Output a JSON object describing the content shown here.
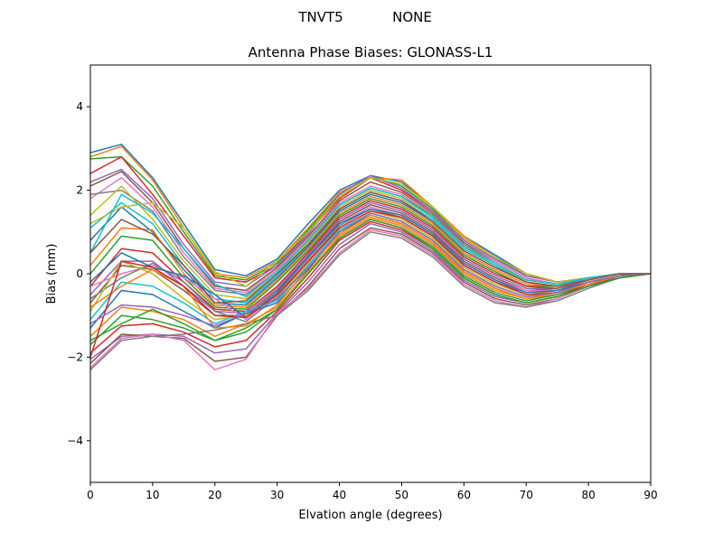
{
  "figure": {
    "suptitle_left": "TNVT5",
    "suptitle_right": "NONE"
  },
  "chart_data": {
    "type": "line",
    "title": "Antenna Phase Biases: GLONASS-L1",
    "xlabel": "Elvation angle (degrees)",
    "ylabel": "Bias (mm)",
    "xlim": [
      0,
      90
    ],
    "ylim": [
      -5,
      5
    ],
    "xticks": [
      0,
      10,
      20,
      30,
      40,
      50,
      60,
      70,
      80,
      90
    ],
    "yticks": [
      -4,
      -2,
      0,
      2,
      4
    ],
    "grid": false,
    "legend": "none",
    "x": [
      0,
      5,
      10,
      15,
      20,
      25,
      30,
      35,
      40,
      45,
      50,
      55,
      60,
      65,
      70,
      75,
      80,
      85,
      90
    ],
    "colors": [
      "#1f77b4",
      "#ff7f0e",
      "#2ca02c",
      "#d62728",
      "#9467bd",
      "#8c564b",
      "#e377c2",
      "#7f7f7f",
      "#bcbd22",
      "#17becf"
    ],
    "series": [
      {
        "values": [
          2.9,
          3.1,
          2.3,
          1.2,
          0.1,
          -0.05,
          0.35,
          1.2,
          2.0,
          2.35,
          2.2,
          1.6,
          0.9,
          0.45,
          0.0,
          -0.2,
          -0.1,
          0.0,
          0.0
        ]
      },
      {
        "values": [
          2.8,
          3.05,
          2.25,
          1.1,
          0.0,
          -0.1,
          0.3,
          1.1,
          1.95,
          2.3,
          2.25,
          1.6,
          0.9,
          0.4,
          0.0,
          -0.2,
          -0.1,
          0.0,
          0.0
        ]
      },
      {
        "values": [
          2.75,
          2.8,
          2.1,
          1.0,
          -0.05,
          -0.15,
          0.25,
          1.05,
          1.9,
          2.35,
          2.1,
          1.55,
          0.85,
          0.4,
          -0.05,
          -0.2,
          -0.1,
          0.0,
          0.0
        ]
      },
      {
        "values": [
          2.4,
          2.8,
          1.9,
          0.9,
          -0.1,
          -0.2,
          0.2,
          1.0,
          1.8,
          2.3,
          2.0,
          1.5,
          0.8,
          0.35,
          -0.05,
          -0.2,
          -0.1,
          0.0,
          0.0
        ]
      },
      {
        "values": [
          2.2,
          2.5,
          1.8,
          0.7,
          -0.2,
          -0.3,
          0.2,
          0.95,
          1.9,
          2.35,
          2.05,
          1.5,
          0.8,
          0.35,
          -0.05,
          -0.2,
          -0.1,
          0.0,
          0.0
        ]
      },
      {
        "values": [
          2.1,
          2.45,
          1.7,
          0.6,
          -0.3,
          -0.4,
          0.15,
          0.9,
          1.75,
          2.2,
          1.95,
          1.45,
          0.75,
          0.3,
          -0.1,
          -0.25,
          -0.1,
          0.0,
          0.0
        ]
      },
      {
        "values": [
          1.8,
          2.3,
          1.6,
          0.5,
          -0.35,
          -0.45,
          0.1,
          0.85,
          1.7,
          2.1,
          1.9,
          1.4,
          0.7,
          0.3,
          -0.1,
          -0.25,
          -0.1,
          0.0,
          0.0
        ]
      },
      {
        "values": [
          1.9,
          2.0,
          1.5,
          0.4,
          -0.4,
          -0.5,
          0.05,
          0.8,
          1.65,
          2.05,
          1.85,
          1.4,
          0.7,
          0.25,
          -0.15,
          -0.25,
          -0.1,
          0.0,
          0.0
        ]
      },
      {
        "values": [
          1.4,
          2.1,
          1.3,
          0.3,
          -0.5,
          -0.6,
          0.0,
          0.75,
          1.6,
          2.0,
          1.8,
          1.35,
          0.65,
          0.2,
          -0.15,
          -0.25,
          -0.1,
          0.0,
          0.0
        ]
      },
      {
        "values": [
          1.1,
          1.7,
          1.2,
          0.2,
          -0.6,
          -0.7,
          -0.05,
          0.7,
          1.55,
          1.95,
          1.75,
          1.3,
          0.6,
          0.2,
          -0.2,
          -0.3,
          -0.1,
          0.0,
          0.0
        ]
      },
      {
        "values": [
          0.8,
          1.6,
          1.0,
          0.1,
          -0.7,
          -0.75,
          -0.1,
          0.65,
          1.5,
          1.9,
          1.7,
          1.25,
          0.55,
          0.15,
          -0.2,
          -0.3,
          -0.15,
          0.0,
          0.0
        ]
      },
      {
        "values": [
          0.2,
          1.1,
          1.05,
          0.0,
          -0.75,
          -0.8,
          -0.15,
          0.6,
          1.45,
          1.85,
          1.65,
          1.2,
          0.5,
          0.1,
          -0.25,
          -0.3,
          -0.15,
          0.0,
          0.0
        ]
      },
      {
        "values": [
          0.0,
          0.9,
          0.8,
          -0.1,
          -0.8,
          -0.85,
          -0.2,
          0.55,
          1.4,
          1.8,
          1.6,
          1.15,
          0.45,
          0.05,
          -0.3,
          -0.3,
          -0.15,
          0.0,
          0.0
        ]
      },
      {
        "values": [
          -0.3,
          0.6,
          0.5,
          -0.2,
          -0.85,
          -0.9,
          -0.3,
          0.5,
          1.35,
          1.75,
          1.55,
          1.1,
          0.4,
          0.0,
          -0.3,
          -0.35,
          -0.15,
          0.0,
          0.0
        ]
      },
      {
        "values": [
          -0.5,
          0.3,
          0.3,
          -0.3,
          -0.9,
          -0.95,
          -0.35,
          0.45,
          1.3,
          1.7,
          1.5,
          1.05,
          0.35,
          -0.05,
          -0.35,
          -0.35,
          -0.15,
          0.0,
          0.0
        ]
      },
      {
        "values": [
          -0.7,
          0.2,
          0.1,
          -0.4,
          -1.0,
          -1.0,
          -0.4,
          0.4,
          1.25,
          1.65,
          1.45,
          1.0,
          0.3,
          -0.1,
          -0.4,
          -0.35,
          -0.2,
          -0.05,
          0.0
        ]
      },
      {
        "values": [
          -0.3,
          0.0,
          0.2,
          -0.1,
          -0.6,
          -1.1,
          -0.5,
          0.35,
          1.2,
          1.6,
          1.4,
          0.95,
          0.25,
          -0.15,
          -0.4,
          -0.4,
          -0.2,
          -0.05,
          0.0
        ]
      },
      {
        "values": [
          -0.6,
          -0.1,
          0.25,
          -0.2,
          -0.9,
          -1.15,
          -0.55,
          0.3,
          1.15,
          1.55,
          1.35,
          0.9,
          0.2,
          -0.2,
          -0.45,
          -0.4,
          -0.2,
          -0.05,
          0.0
        ]
      },
      {
        "values": [
          -0.9,
          0.3,
          0.0,
          -0.6,
          -1.1,
          -1.0,
          -0.6,
          0.25,
          1.1,
          1.5,
          1.3,
          0.85,
          0.15,
          -0.25,
          -0.5,
          -0.4,
          -0.2,
          -0.05,
          0.0
        ]
      },
      {
        "values": [
          -1.1,
          -0.2,
          -0.3,
          -0.7,
          -1.2,
          -0.9,
          -0.65,
          0.2,
          1.05,
          1.45,
          1.25,
          0.8,
          0.1,
          -0.3,
          -0.55,
          -0.45,
          -0.2,
          -0.05,
          0.0
        ]
      },
      {
        "values": [
          -1.3,
          -0.4,
          -0.5,
          -0.9,
          -1.3,
          -0.95,
          -0.7,
          0.1,
          1.0,
          1.4,
          1.2,
          0.75,
          0.05,
          -0.35,
          -0.6,
          -0.45,
          -0.25,
          -0.05,
          0.0
        ]
      },
      {
        "values": [
          -1.5,
          -0.8,
          -0.9,
          -1.1,
          -1.5,
          -1.2,
          -0.8,
          0.05,
          0.9,
          1.35,
          1.15,
          0.7,
          0.0,
          -0.4,
          -0.6,
          -0.5,
          -0.25,
          -0.1,
          0.0
        ]
      },
      {
        "values": [
          -1.7,
          -1.0,
          -1.1,
          -1.3,
          -1.6,
          -1.4,
          -0.85,
          0.0,
          0.85,
          1.3,
          1.1,
          0.65,
          -0.05,
          -0.45,
          -0.65,
          -0.5,
          -0.25,
          -0.1,
          0.0
        ]
      },
      {
        "values": [
          -1.9,
          -1.25,
          -1.2,
          -1.4,
          -1.75,
          -1.6,
          -0.9,
          -0.1,
          0.8,
          1.25,
          1.05,
          0.6,
          -0.1,
          -0.5,
          -0.7,
          -0.55,
          -0.25,
          -0.1,
          0.0
        ]
      },
      {
        "values": [
          -2.05,
          -1.5,
          -1.45,
          -1.5,
          -1.9,
          -1.8,
          -0.95,
          -0.2,
          0.7,
          1.2,
          1.0,
          0.55,
          -0.15,
          -0.55,
          -0.7,
          -0.55,
          -0.3,
          -0.1,
          0.0
        ]
      },
      {
        "values": [
          -2.15,
          -1.45,
          -1.5,
          -1.55,
          -2.1,
          -2.0,
          -1.0,
          -0.3,
          0.6,
          1.1,
          0.95,
          0.5,
          -0.2,
          -0.6,
          -0.75,
          -0.6,
          -0.3,
          -0.1,
          0.0
        ]
      },
      {
        "values": [
          -2.25,
          -1.55,
          -1.45,
          -1.6,
          -2.3,
          -2.05,
          -0.95,
          -0.35,
          0.5,
          1.05,
          0.9,
          0.45,
          -0.25,
          -0.65,
          -0.8,
          -0.6,
          -0.3,
          -0.1,
          0.0
        ]
      },
      {
        "values": [
          -2.3,
          -1.6,
          -1.5,
          -1.45,
          -1.35,
          -1.2,
          -1.0,
          -0.4,
          0.45,
          1.0,
          0.85,
          0.4,
          -0.3,
          -0.7,
          -0.8,
          -0.65,
          -0.35,
          -0.1,
          0.0
        ]
      },
      {
        "values": [
          1.2,
          1.6,
          1.7,
          1.1,
          0.05,
          -0.3,
          0.3,
          1.0,
          1.85,
          2.3,
          2.15,
          1.6,
          0.85,
          0.4,
          0.0,
          -0.2,
          -0.1,
          0.0,
          0.0
        ]
      },
      {
        "values": [
          0.5,
          1.9,
          1.45,
          0.6,
          -0.25,
          -0.55,
          0.05,
          0.8,
          1.65,
          2.05,
          1.85,
          1.35,
          0.65,
          0.25,
          -0.15,
          -0.25,
          -0.1,
          0.0,
          0.0
        ]
      },
      {
        "values": [
          -0.2,
          0.5,
          0.15,
          -0.05,
          -0.5,
          -1.05,
          -0.45,
          0.4,
          1.2,
          1.55,
          1.4,
          0.95,
          0.25,
          -0.15,
          -0.45,
          -0.4,
          -0.2,
          -0.05,
          0.0
        ]
      },
      {
        "values": [
          -0.8,
          -0.3,
          0.1,
          -0.3,
          -1.3,
          -1.25,
          -0.75,
          0.15,
          0.95,
          1.4,
          1.2,
          0.75,
          0.05,
          -0.35,
          -0.6,
          -0.45,
          -0.25,
          -0.05,
          0.0
        ]
      },
      {
        "values": [
          -1.6,
          -1.2,
          -0.85,
          -1.2,
          -1.6,
          -1.3,
          -0.85,
          0.0,
          0.85,
          1.3,
          1.1,
          0.6,
          -0.1,
          -0.5,
          -0.7,
          -0.55,
          -0.3,
          -0.1,
          0.0
        ]
      },
      {
        "values": [
          -2.0,
          0.3,
          0.15,
          -0.3,
          -1.0,
          -1.05,
          -0.5,
          0.3,
          1.1,
          1.5,
          1.35,
          0.9,
          0.2,
          -0.2,
          -0.5,
          -0.45,
          -0.2,
          -0.05,
          0.0
        ]
      },
      {
        "values": [
          -1.2,
          -0.75,
          -0.8,
          -1.0,
          -1.25,
          -0.95,
          -0.6,
          0.15,
          1.0,
          1.45,
          1.25,
          0.8,
          0.1,
          -0.3,
          -0.55,
          -0.45,
          -0.2,
          -0.05,
          0.0
        ]
      },
      {
        "values": [
          0.5,
          1.3,
          0.95,
          0.2,
          -0.7,
          -0.65,
          0.0,
          0.7,
          1.55,
          1.95,
          1.75,
          1.25,
          0.55,
          0.15,
          -0.2,
          -0.3,
          -0.15,
          0.0,
          0.0
        ]
      }
    ]
  }
}
